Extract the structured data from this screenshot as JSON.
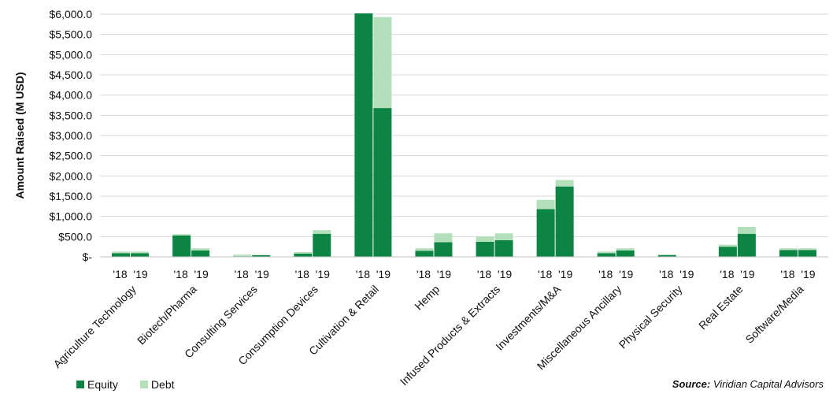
{
  "chart_data": {
    "type": "bar",
    "stacked": true,
    "ylabel": "Amount Raised (M USD)",
    "ylim": [
      0,
      6000
    ],
    "y_ticks": [
      "$-",
      "$500.0",
      "$1,000.0",
      "$1,500.0",
      "$2,000.0",
      "$2,500.0",
      "$3,000.0",
      "$3,500.0",
      "$4,000.0",
      "$4,500.0",
      "$5,000.0",
      "$5,500.0",
      "$6,000.0"
    ],
    "grid": true,
    "legend_position": "bottom-left",
    "categories": [
      "Agriculture Technology",
      "Biotech/Pharma",
      "Consulting Services",
      "Consumption Devices",
      "Cultivation & Retail",
      "Hemp",
      "Infused Products & Extracts",
      "Investments/M&A",
      "Miscellaneous Ancillary",
      "Physical Security",
      "Real Estate",
      "Software/Media"
    ],
    "sub_labels": [
      "'18",
      "'19"
    ],
    "series": [
      {
        "name": "Equity",
        "color": "#0c8444",
        "values_2018": [
          90,
          530,
          15,
          80,
          6020,
          150,
          370,
          1180,
          90,
          45,
          250,
          170
        ],
        "values_2019": [
          90,
          160,
          40,
          570,
          3680,
          360,
          410,
          1740,
          160,
          0,
          570,
          170
        ]
      },
      {
        "name": "Debt",
        "color": "#b3e0bb",
        "values_2018": [
          40,
          30,
          40,
          40,
          0,
          60,
          130,
          230,
          40,
          0,
          50,
          40
        ],
        "values_2019": [
          40,
          50,
          10,
          90,
          2250,
          220,
          170,
          160,
          50,
          0,
          170,
          40
        ]
      }
    ]
  },
  "legend": {
    "equity": "Equity",
    "debt": "Debt"
  },
  "source": {
    "label": "Source:",
    "text": "Viridian Capital Advisors"
  }
}
